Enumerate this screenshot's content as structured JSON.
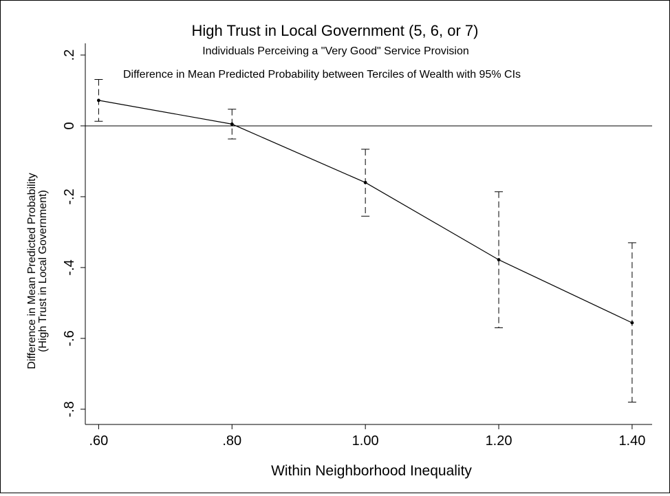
{
  "chart_data": {
    "type": "line",
    "title": "High Trust in Local Government (5, 6, or 7)",
    "subtitle": "Individuals Perceiving a \"Very Good\" Service Provision",
    "note": "Difference in Mean Predicted Probability between Terciles of Wealth with 95% CIs",
    "xlabel": "Within Neighborhood Inequality",
    "ylabel_line1": "Difference in Mean Predicted Probability",
    "ylabel_line2": "(High Trust in Local Government)",
    "x_ticks": [
      {
        "value": 0.6,
        "label": ".60"
      },
      {
        "value": 0.8,
        "label": ".80"
      },
      {
        "value": 1.0,
        "label": "1.00"
      },
      {
        "value": 1.2,
        "label": "1.20"
      },
      {
        "value": 1.4,
        "label": "1.40"
      }
    ],
    "y_ticks": [
      {
        "value": 0.2,
        "label": ".2"
      },
      {
        "value": 0.0,
        "label": "0"
      },
      {
        "value": -0.2,
        "label": "-.2"
      },
      {
        "value": -0.4,
        "label": "-.4"
      },
      {
        "value": -0.6,
        "label": "-.6"
      },
      {
        "value": -0.8,
        "label": "-.8"
      }
    ],
    "xlim": [
      0.58,
      1.43
    ],
    "ylim": [
      -0.843,
      0.233
    ],
    "reference_line_y": 0,
    "grid": false,
    "series": [
      {
        "points": [
          {
            "x": 0.6,
            "y": 0.072,
            "ci_low": 0.013,
            "ci_high": 0.131
          },
          {
            "x": 0.8,
            "y": 0.005,
            "ci_low": -0.037,
            "ci_high": 0.047
          },
          {
            "x": 1.0,
            "y": -0.16,
            "ci_low": -0.255,
            "ci_high": -0.066
          },
          {
            "x": 1.2,
            "y": -0.378,
            "ci_low": -0.57,
            "ci_high": -0.186
          },
          {
            "x": 1.4,
            "y": -0.556,
            "ci_low": -0.78,
            "ci_high": -0.33
          }
        ]
      }
    ],
    "colors": {
      "line": "#000000",
      "markers": "#000000",
      "ci": "#000000"
    }
  }
}
